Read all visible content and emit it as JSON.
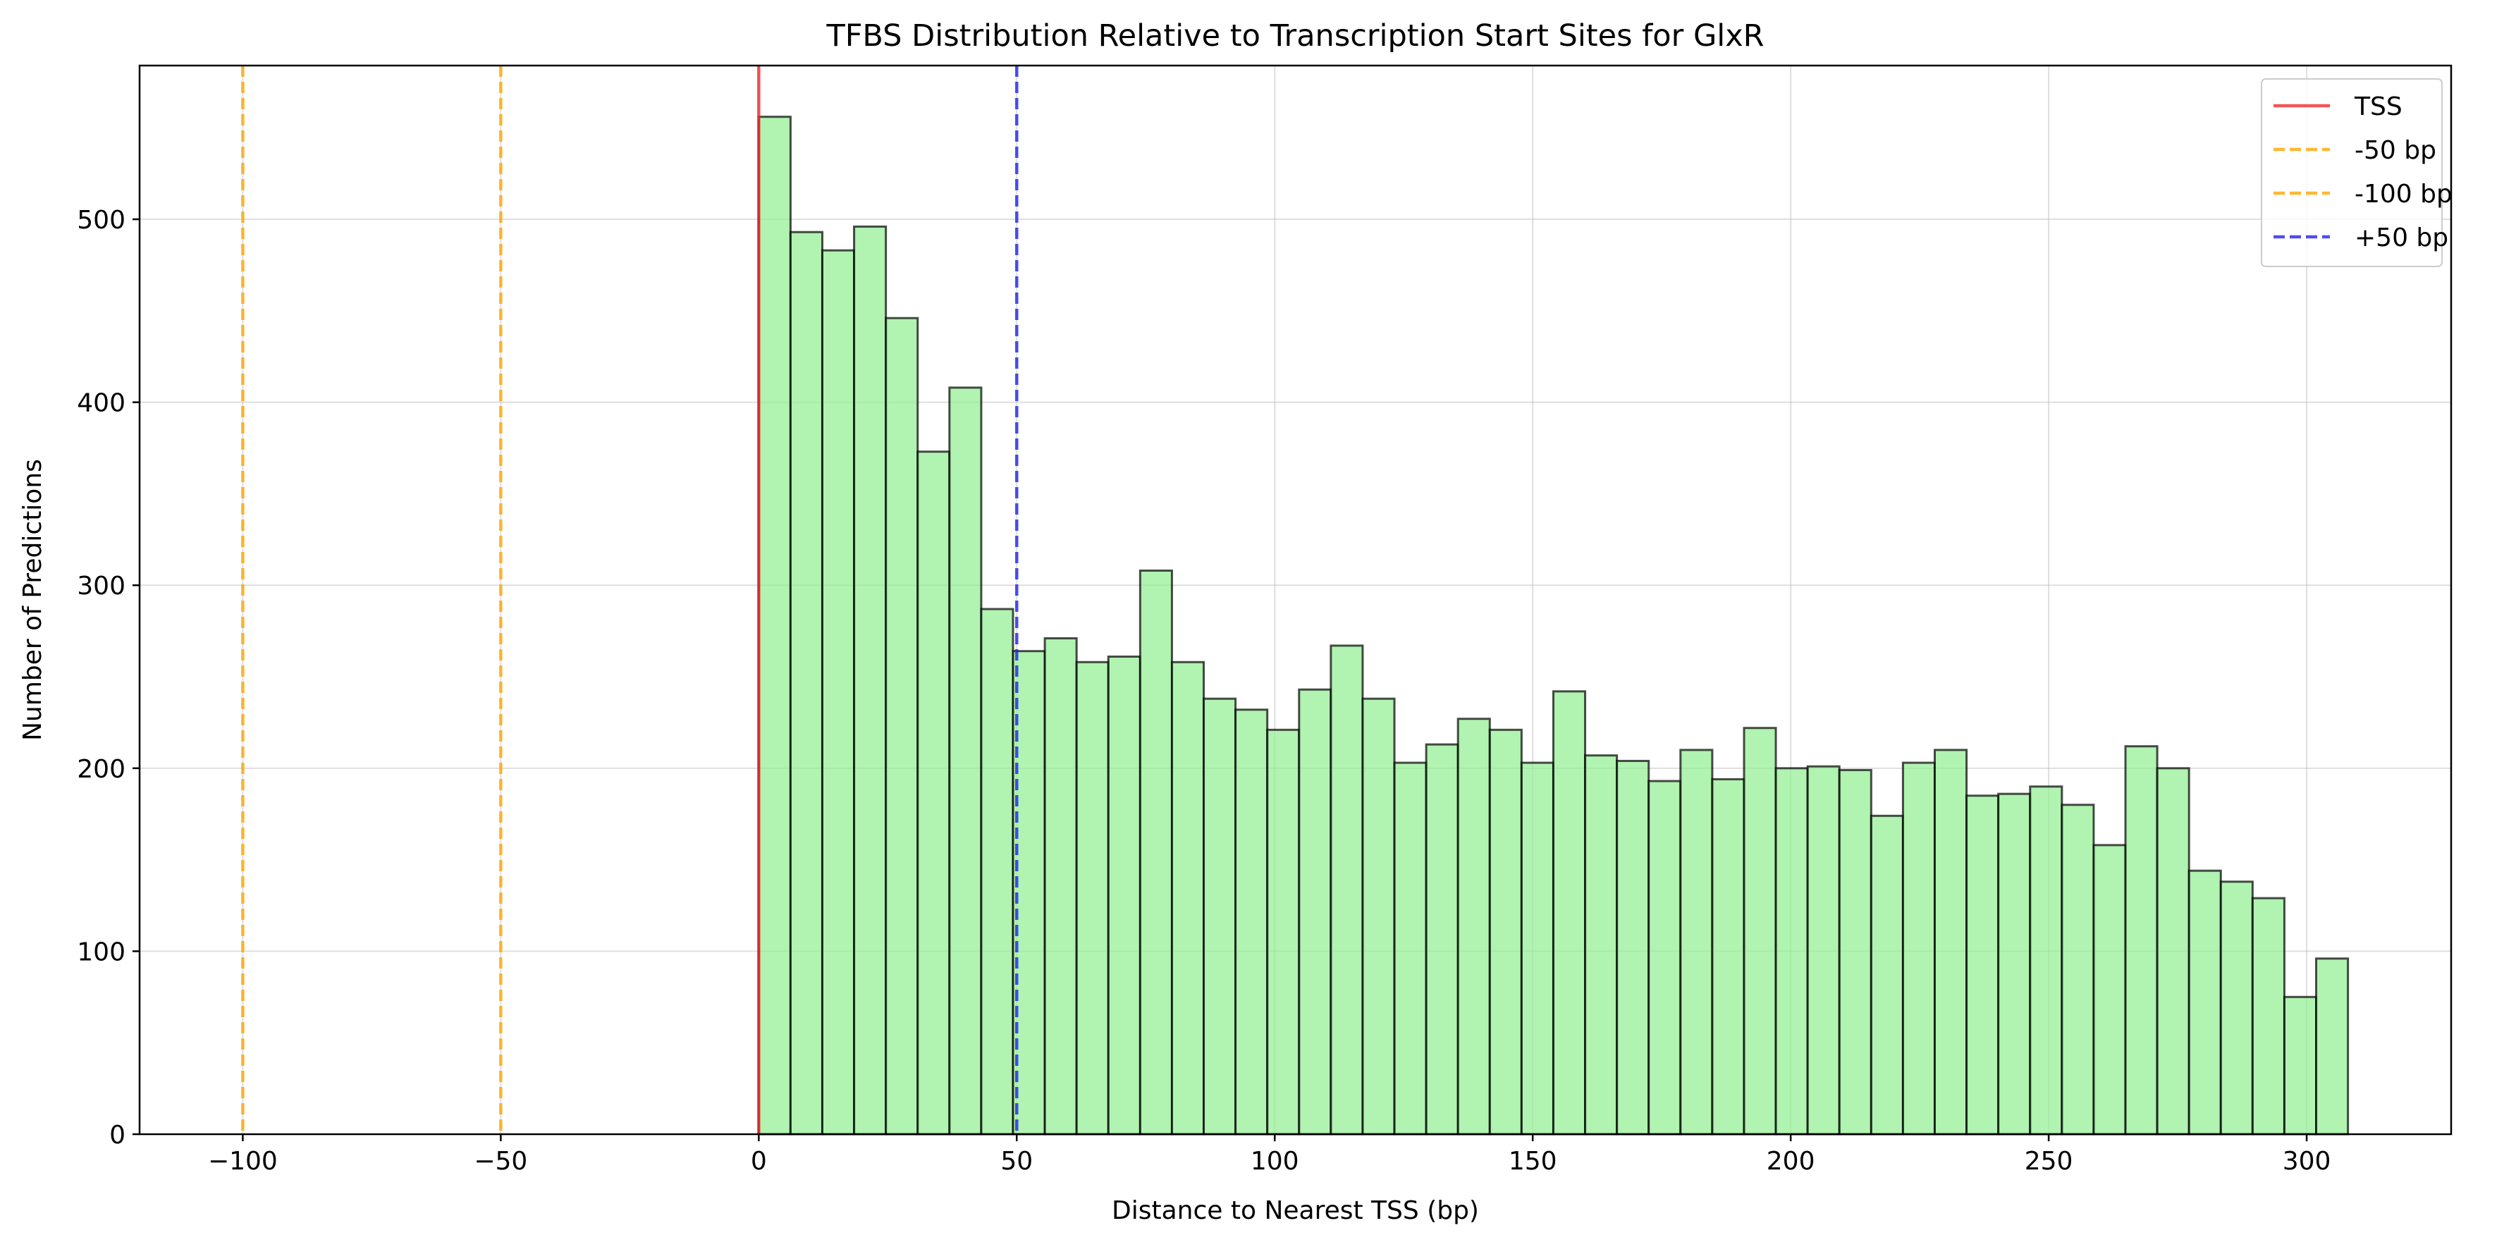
{
  "chart_data": {
    "type": "bar",
    "title": "TFBS Distribution Relative to Transcription Start Sites for GlxR",
    "xlabel": "Distance to Nearest TSS (bp)",
    "ylabel": "Number of Predictions",
    "xlim": [
      -120,
      328
    ],
    "ylim": [
      0,
      584
    ],
    "xticks": [
      -100,
      -50,
      0,
      50,
      100,
      150,
      200,
      250,
      300
    ],
    "xtick_labels": [
      "−100",
      "−50",
      "0",
      "50",
      "100",
      "150",
      "200",
      "250",
      "300"
    ],
    "yticks": [
      0,
      100,
      200,
      300,
      400,
      500
    ],
    "ytick_labels": [
      "0",
      "100",
      "200",
      "300",
      "400",
      "500"
    ],
    "grid": true,
    "legend_position": "top-right",
    "bar_color": "#90ee90",
    "bar_edge_color": "#000000",
    "bin_width": 6.16,
    "bin_start": 0,
    "values": [
      556,
      493,
      483,
      496,
      446,
      373,
      408,
      287,
      264,
      271,
      258,
      261,
      308,
      258,
      238,
      232,
      221,
      243,
      267,
      238,
      203,
      213,
      227,
      221,
      203,
      242,
      207,
      204,
      193,
      210,
      194,
      222,
      200,
      201,
      199,
      174,
      203,
      210,
      185,
      186,
      190,
      180,
      158,
      212,
      200,
      144,
      138,
      129,
      75,
      96
    ],
    "reference_lines": [
      {
        "name": "TSS",
        "x": 0,
        "color": "#ef2b2b",
        "style": "solid"
      },
      {
        "name": "-50 bp",
        "x": -50,
        "color": "#ffa500",
        "style": "dashed"
      },
      {
        "name": "-100 bp",
        "x": -100,
        "color": "#ffa500",
        "style": "dashed"
      },
      {
        "name": "+50 bp",
        "x": 50,
        "color": "#2222ee",
        "style": "dashed"
      }
    ]
  }
}
